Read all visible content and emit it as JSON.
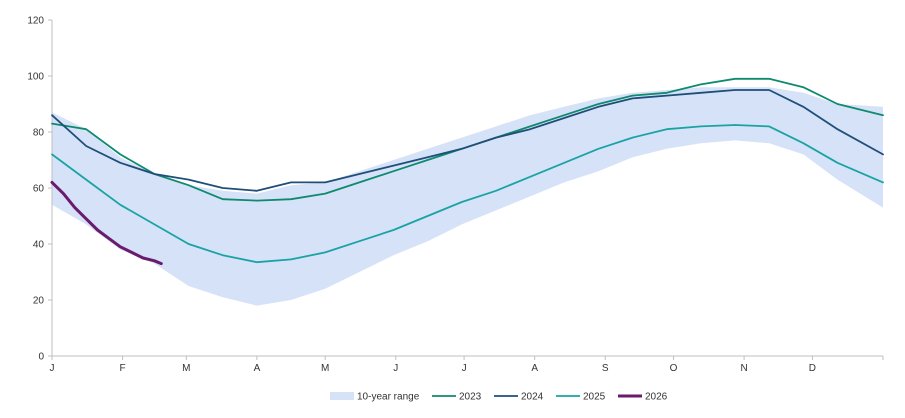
{
  "chart_data": {
    "type": "line",
    "title": "",
    "xlabel": "",
    "ylabel": "",
    "ylim": [
      0,
      120
    ],
    "yticks": [
      0,
      20,
      40,
      60,
      80,
      100,
      120
    ],
    "xlim": [
      0,
      365
    ],
    "months": [
      {
        "label": "J",
        "day": 0
      },
      {
        "label": "F",
        "day": 31
      },
      {
        "label": "M",
        "day": 59
      },
      {
        "label": "A",
        "day": 90
      },
      {
        "label": "M",
        "day": 120
      },
      {
        "label": "J",
        "day": 151
      },
      {
        "label": "J",
        "day": 181
      },
      {
        "label": "A",
        "day": 212
      },
      {
        "label": "S",
        "day": 243
      },
      {
        "label": "O",
        "day": 273
      },
      {
        "label": "N",
        "day": 304
      },
      {
        "label": "D",
        "day": 334
      }
    ],
    "range": {
      "name": "10-year range",
      "color": "#d6e2f8",
      "days": [
        0,
        15,
        30,
        45,
        60,
        75,
        90,
        105,
        120,
        135,
        150,
        165,
        180,
        195,
        210,
        225,
        240,
        255,
        270,
        285,
        300,
        315,
        330,
        345,
        365
      ],
      "upper": [
        87,
        81,
        71,
        65,
        61,
        59,
        58,
        61,
        62,
        66,
        70,
        74,
        78,
        82,
        86,
        89,
        92,
        94,
        95,
        96,
        96,
        96,
        94,
        90,
        89
      ],
      "lower": [
        54,
        47,
        38,
        33,
        25,
        21,
        18,
        20,
        24,
        30,
        36,
        41,
        47,
        52,
        57,
        62,
        66,
        71,
        74,
        76,
        77,
        76,
        72,
        63,
        53
      ]
    },
    "series": [
      {
        "name": "2023",
        "color": "#0e8a6e",
        "width": 1.8,
        "days": [
          0,
          15,
          30,
          45,
          60,
          75,
          90,
          105,
          120,
          135,
          150,
          165,
          180,
          195,
          210,
          225,
          240,
          255,
          270,
          285,
          300,
          315,
          330,
          345,
          365
        ],
        "values": [
          83,
          81,
          72,
          65,
          61,
          56,
          55.5,
          56,
          58,
          62,
          66,
          70,
          74,
          78,
          82,
          86,
          90,
          93,
          94,
          97,
          99,
          99,
          96,
          90,
          86
        ]
      },
      {
        "name": "2024",
        "color": "#1f4e79",
        "width": 1.8,
        "days": [
          0,
          15,
          30,
          45,
          60,
          75,
          90,
          105,
          120,
          135,
          150,
          165,
          180,
          195,
          210,
          225,
          240,
          255,
          270,
          285,
          300,
          315,
          330,
          345,
          365
        ],
        "values": [
          86,
          75,
          69,
          65,
          63,
          60,
          59,
          62,
          62,
          65,
          68,
          71,
          74,
          78,
          81,
          85,
          89,
          92,
          93,
          94,
          95,
          95,
          89,
          81,
          72
        ]
      },
      {
        "name": "2025",
        "color": "#1aa3a3",
        "width": 1.8,
        "days": [
          0,
          15,
          30,
          45,
          60,
          75,
          90,
          105,
          120,
          135,
          150,
          165,
          180,
          195,
          210,
          225,
          240,
          255,
          270,
          285,
          300,
          315,
          330,
          345,
          365
        ],
        "values": [
          72,
          63,
          54,
          47,
          40,
          36,
          33.5,
          34.5,
          37,
          41,
          45,
          50,
          55,
          59,
          64,
          69,
          74,
          78,
          81,
          82,
          82.5,
          82,
          76,
          69,
          62
        ]
      },
      {
        "name": "2026",
        "color": "#6a1b6e",
        "width": 3,
        "days": [
          0,
          5,
          10,
          15,
          20,
          25,
          30,
          35,
          40,
          45,
          48
        ],
        "values": [
          62,
          58,
          53,
          49,
          45,
          42,
          39,
          37,
          35,
          34,
          33
        ]
      }
    ],
    "legend": {
      "position": "bottom",
      "entries": [
        "10-year range",
        "2023",
        "2024",
        "2025",
        "2026"
      ]
    },
    "grid": false
  }
}
